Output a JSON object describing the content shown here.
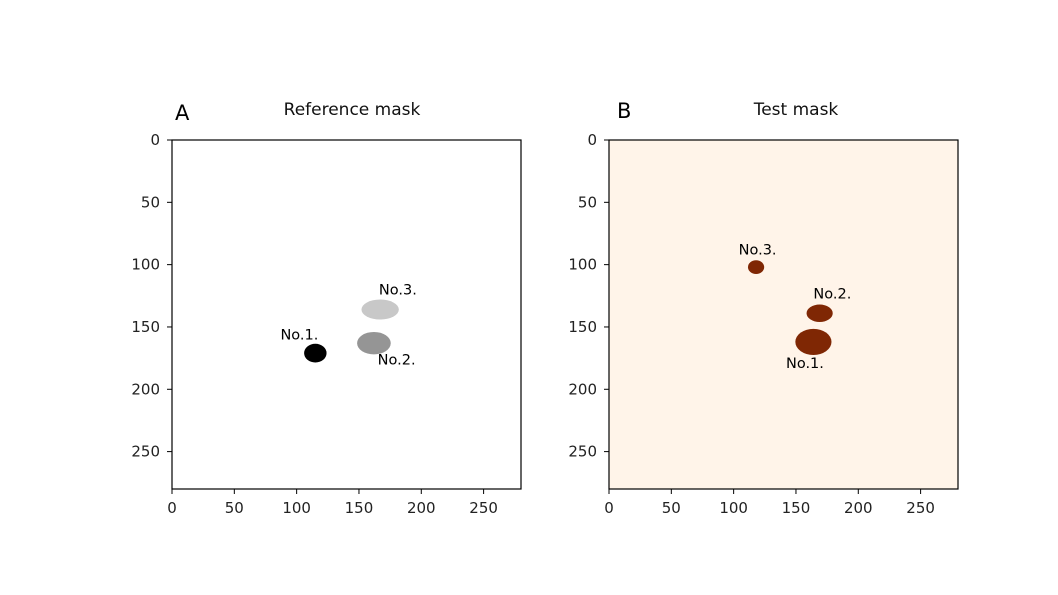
{
  "chart_data": [
    {
      "type": "heatmap",
      "panel_letter": "A",
      "title": "Reference mask",
      "xlim": [
        0,
        280
      ],
      "ylim": [
        280,
        0
      ],
      "xticks": [
        0,
        50,
        100,
        150,
        200,
        250
      ],
      "yticks": [
        0,
        50,
        100,
        150,
        200,
        250
      ],
      "colormap": "gray_r",
      "background_color": "#ffffff",
      "regions": [
        {
          "name": "region-no1",
          "label": "No.1.",
          "center": [
            115,
            171
          ],
          "radius": [
            9,
            7.5
          ],
          "color": "#000000",
          "label_pos": [
            87,
            160
          ]
        },
        {
          "name": "region-no2",
          "label": "No.2.",
          "center": [
            162,
            163
          ],
          "radius": [
            13.5,
            9
          ],
          "color": "#959595",
          "label_pos": [
            165,
            180
          ]
        },
        {
          "name": "region-no3",
          "label": "No.3.",
          "center": [
            167,
            136
          ],
          "radius": [
            15,
            8
          ],
          "color": "#c8c8c8",
          "label_pos": [
            166,
            124
          ]
        }
      ]
    },
    {
      "type": "heatmap",
      "panel_letter": "B",
      "title": "Test mask",
      "xlim": [
        0,
        280
      ],
      "ylim": [
        280,
        0
      ],
      "xticks": [
        0,
        50,
        100,
        150,
        200,
        250
      ],
      "yticks": [
        0,
        50,
        100,
        150,
        200,
        250
      ],
      "colormap": "Oranges",
      "background_color": "#fff4e9",
      "regions": [
        {
          "name": "region-no1",
          "label": "No.1.",
          "center": [
            164,
            162
          ],
          "radius": [
            14.5,
            10.5
          ],
          "color": "#7f2704",
          "label_pos": [
            142,
            183
          ]
        },
        {
          "name": "region-no2",
          "label": "No.2.",
          "center": [
            169,
            139
          ],
          "radius": [
            10.5,
            7
          ],
          "color": "#7f2704",
          "label_pos": [
            164,
            127
          ]
        },
        {
          "name": "region-no3",
          "label": "No.3.",
          "center": [
            118,
            102
          ],
          "radius": [
            6.5,
            5.5
          ],
          "color": "#7f2704",
          "label_pos": [
            104,
            92
          ]
        }
      ]
    }
  ]
}
